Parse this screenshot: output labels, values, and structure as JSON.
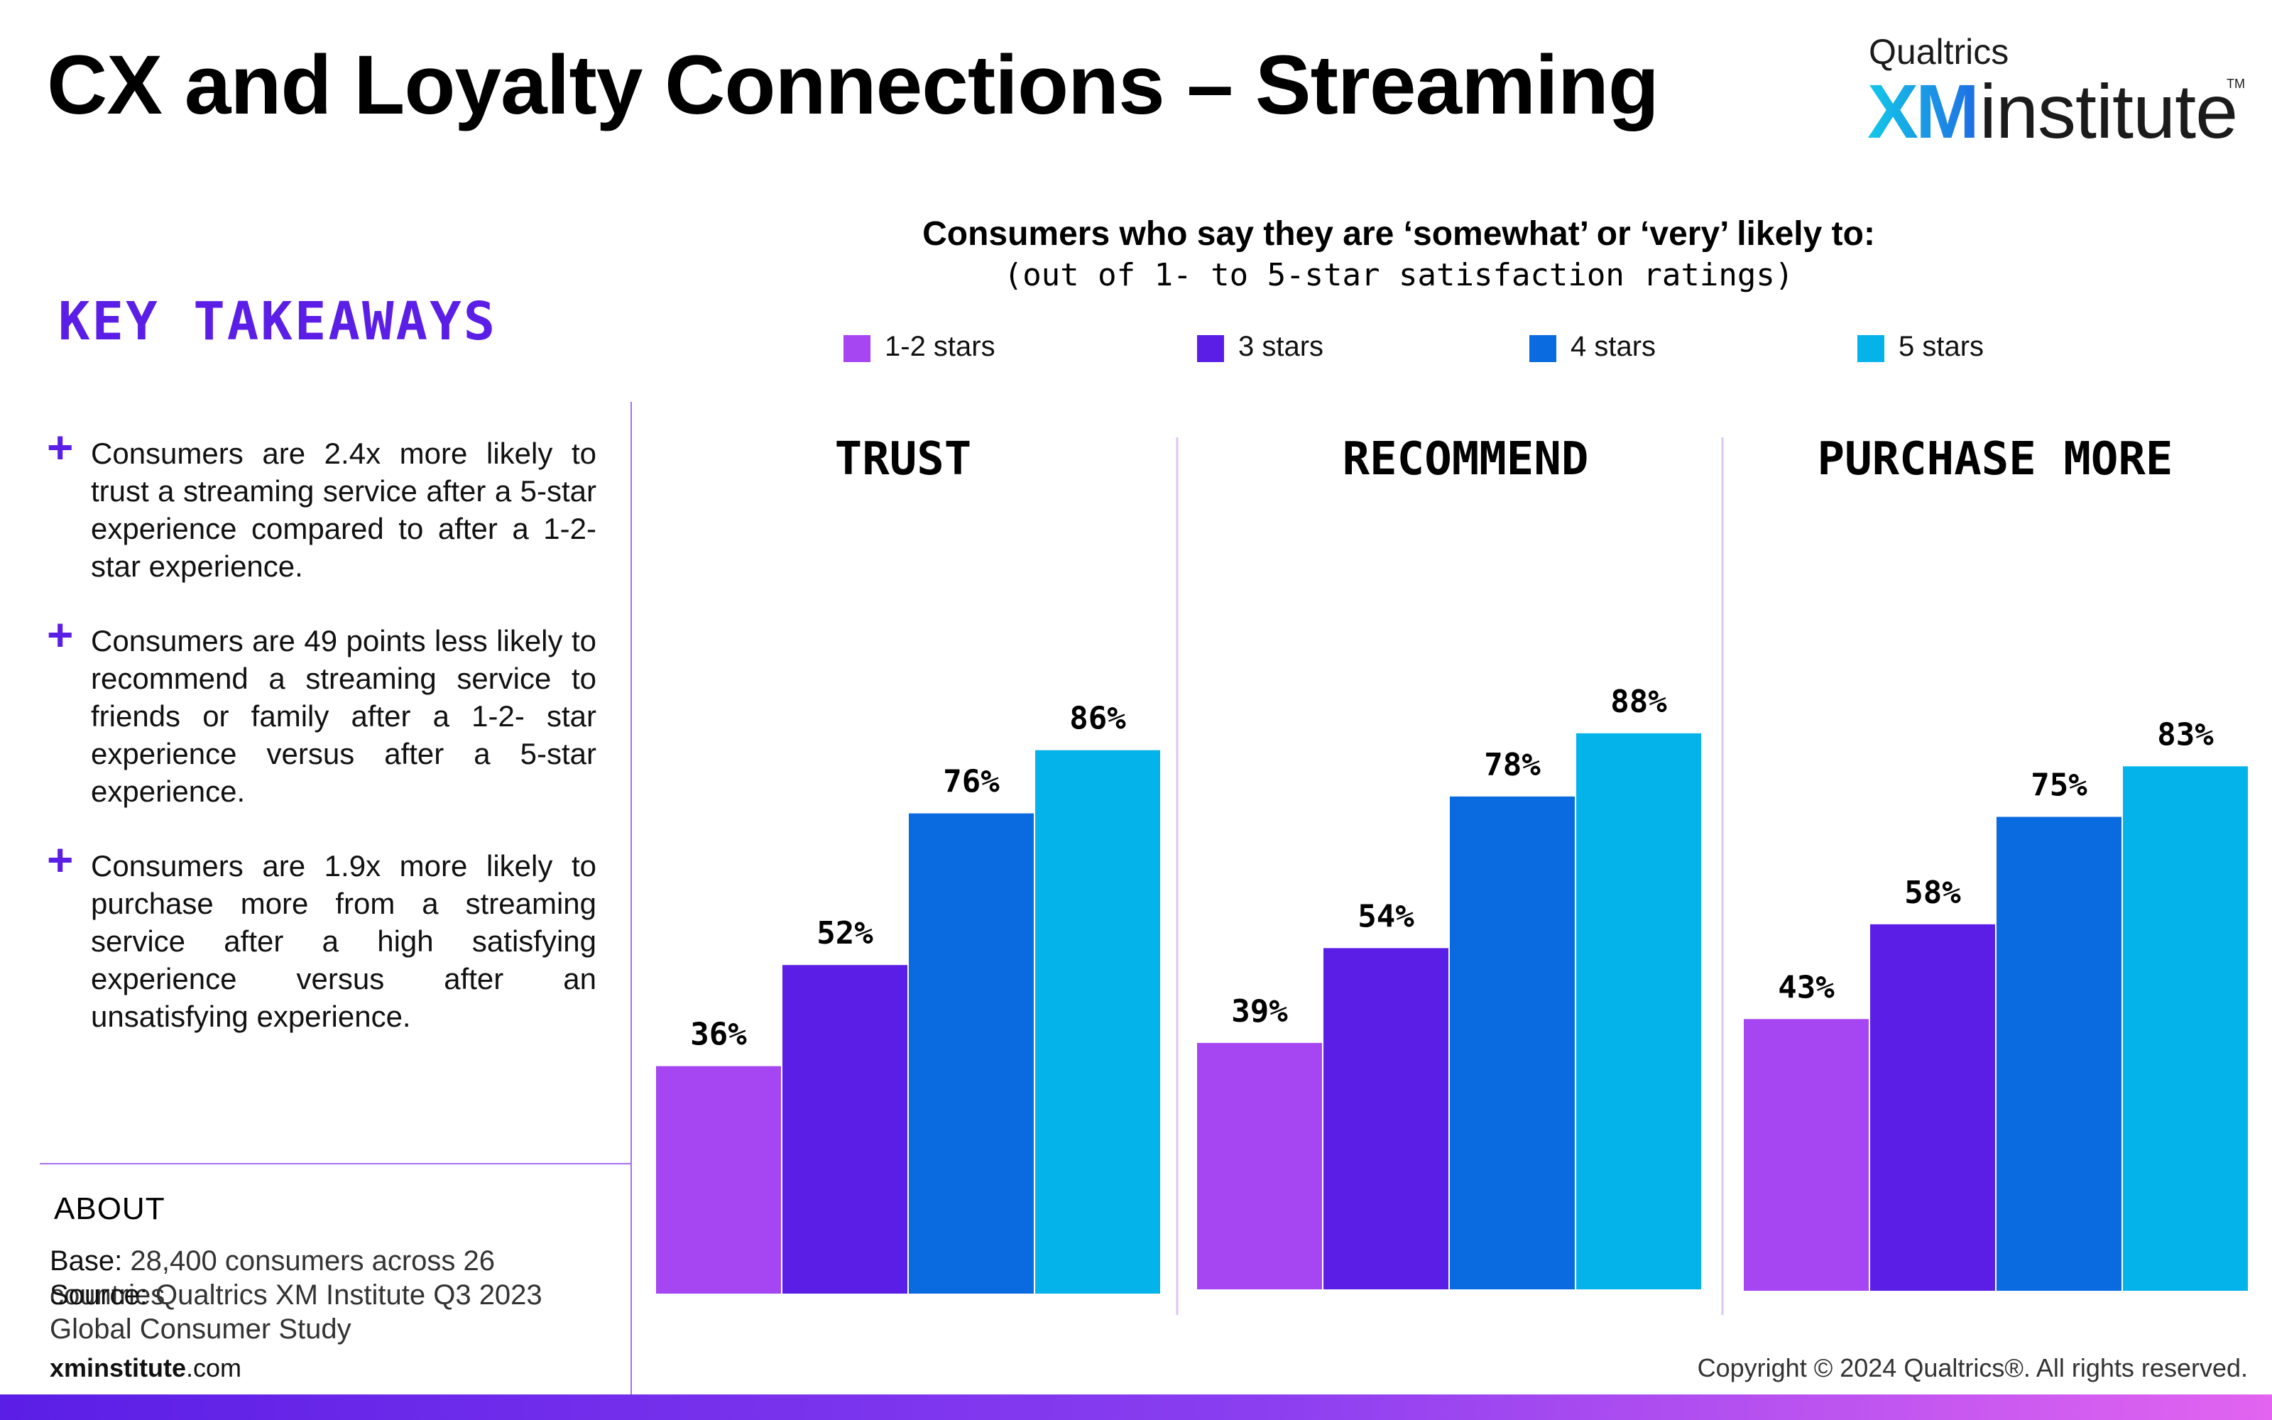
{
  "page": {
    "title": "CX and Loyalty Connections – Streaming",
    "logo": {
      "brand": "Qualtrics",
      "xm": "XM",
      "word": "institute",
      "tm": "TM"
    },
    "key_takeaways": {
      "heading": "KEY TAKEAWAYS",
      "items": [
        "Consumers are 2.4x more likely to trust a  streaming service after a 5-star experience compared to after a 1-2- star experience.",
        "Consumers are 49 points less likely to recommend a streaming service to friends or family after a 1-2- star experience versus after a 5-star experience.",
        "Consumers are 1.9x more likely to purchase more from a streaming service after a high satisfying experience versus after an unsatisfying experience."
      ]
    },
    "about": {
      "heading": "ABOUT",
      "base_label": "Base:",
      "base_value": "28,400 consumers across 26 countries",
      "source_label": "Source:",
      "source_value": "Qualtrics XM Institute Q3 2023 Global Consumer Study"
    },
    "footer": {
      "site_bold": "xminstitute",
      "site_rest": ".com",
      "copyright": "Copyright © 2024 Qualtrics®. All rights reserved."
    }
  },
  "chart_data": {
    "type": "bar",
    "title": "Consumers who say they are ‘somewhat’ or ‘very’ likely to:",
    "subtitle": "(out of 1- to 5-star satisfaction ratings)",
    "categories": [
      "TRUST",
      "RECOMMEND",
      "PURCHASE MORE"
    ],
    "series": [
      {
        "name": "1-2 stars",
        "color": "#a546f2",
        "values": [
          36,
          39,
          43
        ]
      },
      {
        "name": "3 stars",
        "color": "#5b1ee6",
        "values": [
          52,
          54,
          58
        ]
      },
      {
        "name": "4 stars",
        "color": "#0a6be0",
        "values": [
          76,
          78,
          75
        ]
      },
      {
        "name": "5 stars",
        "color": "#05b3eb",
        "values": [
          86,
          88,
          83
        ]
      }
    ],
    "value_suffix": "%",
    "ylim": [
      0,
      100
    ],
    "grid": false,
    "legend_position": "top"
  }
}
